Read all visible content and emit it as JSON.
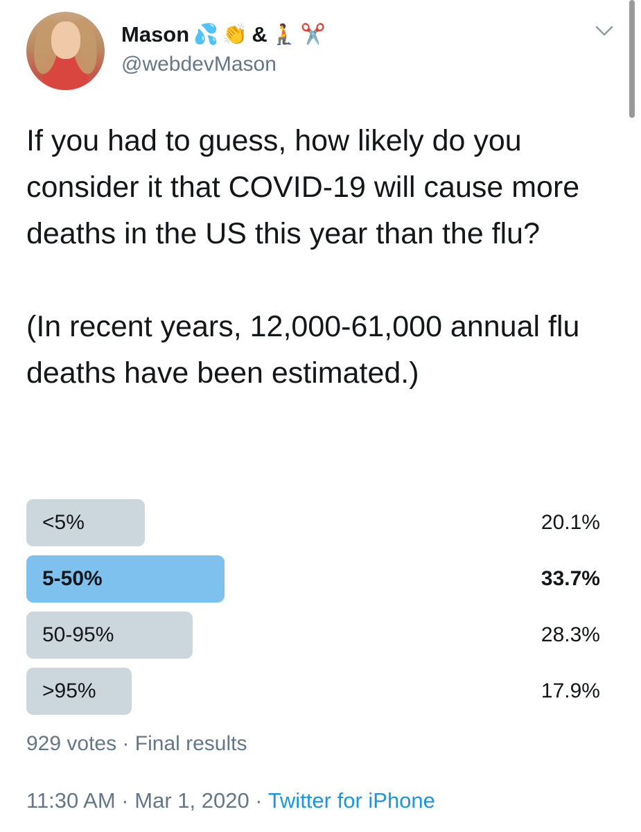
{
  "user": {
    "name": "Mason",
    "emojis": [
      "💦",
      "👏",
      "&",
      "🧎",
      "✂️"
    ],
    "handle": "@webdevMason"
  },
  "tweet": {
    "text": "If you had to guess, how likely do you consider it that COVID-19 will cause more deaths in the US this year than the flu?\n\n(In recent years, 12,000-61,000 annual flu deaths have been estimated.)"
  },
  "poll": {
    "options": [
      {
        "label": "<5%",
        "percent_text": "20.1%",
        "percent": 20.1,
        "winner": false
      },
      {
        "label": "5-50%",
        "percent_text": "33.7%",
        "percent": 33.7,
        "winner": true
      },
      {
        "label": "50-95%",
        "percent_text": "28.3%",
        "percent": 28.3,
        "winner": false
      },
      {
        "label": ">95%",
        "percent_text": "17.9%",
        "percent": 17.9,
        "winner": false
      }
    ],
    "votes": "929 votes",
    "separator": " · ",
    "status": "Final results"
  },
  "meta": {
    "time": "11:30 AM",
    "date": "Mar 1, 2020",
    "separator": " · ",
    "source": "Twitter for iPhone"
  },
  "icons": {
    "menu": "chevron-down-icon"
  },
  "colors": {
    "winner_bar": "#7ec0ee",
    "bar": "#ccd6dd",
    "secondary_text": "#657786",
    "link": "#1b95e0"
  }
}
